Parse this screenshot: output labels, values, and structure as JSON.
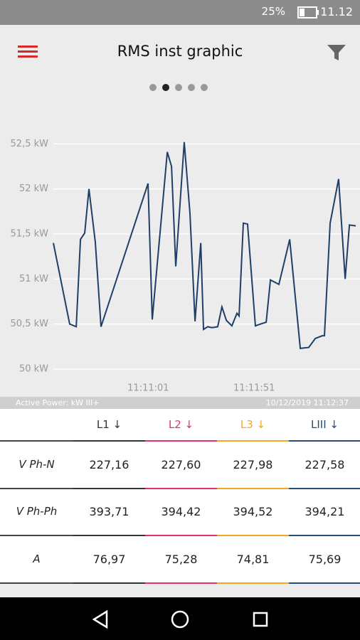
{
  "status_bar": {
    "battery": "25%",
    "time": "11.12"
  },
  "header": {
    "title": "RMS inst graphic"
  },
  "chart_data": {
    "type": "line",
    "x": [
      40216.2,
      40223.9,
      40227.0,
      40229.0,
      40231.0,
      40233.0,
      40236.0,
      40238.7,
      40260.9,
      40262.9,
      40270.0,
      40272.0,
      40274.0,
      40278.0,
      40280.7,
      40283.1,
      40285.8,
      40287.1,
      40289.1,
      40291.1,
      40293.8,
      40295.8,
      40297.9,
      40300.5,
      40302.9,
      40303.9,
      40305.9,
      40307.9,
      40311.6,
      40314.0,
      40316.7,
      40318.7,
      40322.7,
      40327.8,
      40332.8,
      40336.8,
      40339.9,
      40343.2,
      40344.2,
      40346.9,
      40350.9,
      40354.0,
      40356.0,
      40359.0
    ],
    "series": [
      {
        "name": "Active Power: kW III+",
        "color": "#1f3f66",
        "values": [
          51.4,
          50.5,
          50.47,
          51.44,
          51.51,
          52.0,
          51.41,
          50.47,
          52.06,
          50.55,
          52.41,
          52.25,
          51.14,
          52.52,
          51.73,
          50.53,
          51.4,
          50.44,
          50.47,
          50.46,
          50.47,
          50.69,
          50.54,
          50.48,
          50.62,
          50.59,
          51.62,
          51.61,
          50.48,
          50.5,
          50.52,
          50.99,
          50.94,
          51.44,
          50.23,
          50.24,
          50.34,
          50.37,
          50.37,
          51.62,
          52.11,
          51.0,
          51.6,
          51.59
        ]
      }
    ],
    "xlim": [
      40191,
      40361
    ],
    "xticks": [
      {
        "value": 40261,
        "label": "11:11:01"
      },
      {
        "value": 40311,
        "label": "11:11:51"
      }
    ],
    "ylim": [
      49.7,
      52.7
    ],
    "yticks": [
      {
        "value": 50,
        "label": "50 kW"
      },
      {
        "value": 50.5,
        "label": "50,5 kW"
      },
      {
        "value": 51,
        "label": "51 kW"
      },
      {
        "value": 51.5,
        "label": "51,5 kW"
      },
      {
        "value": 52,
        "label": "52 kW"
      },
      {
        "value": 52.5,
        "label": "52,5 kW"
      }
    ],
    "grid": true
  },
  "footer": {
    "timestamp": "10/12/2019 11:12:37"
  },
  "table": {
    "columns": [
      {
        "name": "L1",
        "color": "#333333"
      },
      {
        "name": "L2",
        "color": "#e0336a"
      },
      {
        "name": "L3",
        "color": "#f5a623"
      },
      {
        "name": "LIII",
        "color": "#2b4a7a"
      }
    ],
    "rows": [
      {
        "label": "V Ph-N",
        "values": [
          "227,16",
          "227,60",
          "227,98",
          "227,58"
        ]
      },
      {
        "label": "V Ph-Ph",
        "values": [
          "393,71",
          "394,42",
          "394,52",
          "394,21"
        ]
      },
      {
        "label": "A",
        "values": [
          "76,97",
          "75,28",
          "74,81",
          "75,69"
        ]
      }
    ]
  }
}
